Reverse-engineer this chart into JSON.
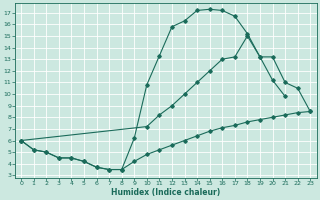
{
  "xlabel": "Humidex (Indice chaleur)",
  "bg_color": "#cce8e0",
  "grid_color": "#ffffff",
  "line_color": "#1a6b5a",
  "xlim": [
    -0.5,
    23.5
  ],
  "ylim": [
    2.8,
    17.8
  ],
  "xticks": [
    0,
    1,
    2,
    3,
    4,
    5,
    6,
    7,
    8,
    9,
    10,
    11,
    12,
    13,
    14,
    15,
    16,
    17,
    18,
    19,
    20,
    21,
    22,
    23
  ],
  "yticks": [
    3,
    4,
    5,
    6,
    7,
    8,
    9,
    10,
    11,
    12,
    13,
    14,
    15,
    16,
    17
  ],
  "curve_top_x": [
    0,
    1,
    2,
    3,
    4,
    5,
    6,
    7,
    8,
    9,
    10,
    11,
    12,
    13,
    14,
    15,
    16,
    17,
    18,
    19,
    20,
    21
  ],
  "curve_top_y": [
    6.0,
    5.2,
    5.0,
    4.5,
    4.5,
    4.2,
    3.7,
    3.5,
    3.5,
    6.2,
    10.8,
    13.3,
    15.8,
    16.3,
    17.2,
    17.3,
    17.2,
    16.7,
    15.2,
    13.2,
    11.2,
    9.8
  ],
  "curve_mid_x": [
    0,
    10,
    11,
    12,
    13,
    14,
    15,
    16,
    17,
    18,
    19,
    20,
    21,
    22,
    23
  ],
  "curve_mid_y": [
    6.0,
    7.2,
    8.2,
    9.0,
    10.0,
    11.0,
    12.0,
    13.0,
    13.2,
    15.0,
    13.2,
    13.2,
    11.0,
    10.5,
    8.5
  ],
  "curve_bot_x": [
    0,
    1,
    2,
    3,
    4,
    5,
    6,
    7,
    8,
    9,
    10,
    11,
    12,
    13,
    14,
    15,
    16,
    17,
    18,
    19,
    20,
    21,
    22,
    23
  ],
  "curve_bot_y": [
    6.0,
    5.2,
    5.0,
    4.5,
    4.5,
    4.2,
    3.7,
    3.5,
    3.5,
    4.2,
    4.8,
    5.2,
    5.6,
    6.0,
    6.4,
    6.8,
    7.1,
    7.3,
    7.6,
    7.8,
    8.0,
    8.2,
    8.4,
    8.5
  ]
}
